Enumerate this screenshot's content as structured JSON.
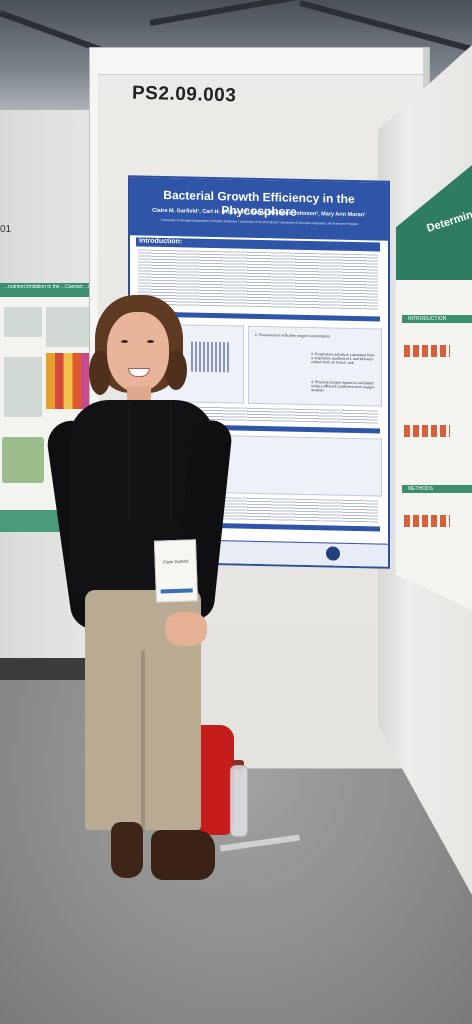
{
  "board": {
    "code": "PS2.09.003"
  },
  "left_poster": {
    "title": "...nutrient limitation in the ...Caerian ...in subsoil than topsoil",
    "number": "01"
  },
  "poster": {
    "title": "Bacterial Growth Efficiency in the Phycosphere",
    "authors": "Claire M. Garfield¹, Carl H. Gibson IV², Maria Machado Johnson³, Mary Ann Moran¹",
    "affiliations": "¹ University of Georgia Department of Marine Sciences  ² University of South Dakota  ³ University of Georgia Integrated Life Sciences Program",
    "section_intro": "Introduction:",
    "panel_labels": [
      "2. Fluorescence indicates oxygen consumption",
      "3. Respiratory activity is calculated from a respiratory quotient of 1 and biomass carbon from an N-to-C unit",
      "4. Physical oxygen impact is calculated using a different coefficient from oxygen analysis"
    ],
    "footer": "Chemical Currencies of a Microbial Planet"
  },
  "right_poster": {
    "title": "Determining h... of soil ...",
    "sections": [
      "INTRODUCTION",
      "METHODS"
    ]
  },
  "badge": {
    "name": "Claire Garfield"
  }
}
